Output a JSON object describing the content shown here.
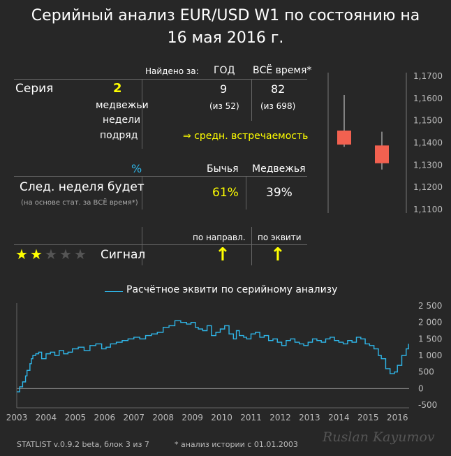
{
  "title_line1": "Серийный анализ EUR/USD W1 по состоянию на",
  "title_line2": "16 мая 2016 г.",
  "found_in": "Найдено за:",
  "col_year": "ГОД",
  "col_all": "ВСЁ время*",
  "series_label": "Серия",
  "series_count": "2",
  "series_desc1": "медвежьи",
  "series_desc2": "недели",
  "series_desc3": "подряд",
  "year_count": "9",
  "year_of": "(из 52)",
  "all_count": "82",
  "all_of": "(из 698)",
  "frequency": "⇒  средн. встречаемость",
  "pct_symbol": "%",
  "col_bull": "Бычья",
  "col_bear": "Медвежья",
  "next_week": "След. неделя будет",
  "next_week_note": "(на основе стат. за ВСЁ время*)",
  "bull_pct": "61%",
  "bear_pct": "39%",
  "by_direction": "по направл.",
  "by_equity": "по эквити",
  "signal_label": "Сигнал",
  "signal_stars": 2,
  "signal_stars_max": 5,
  "arrow_direction": "↑",
  "arrow_equity": "↑",
  "candles": {
    "y_ticks": [
      "1,1700",
      "1,1600",
      "1,1500",
      "1,1400",
      "1,1300",
      "1,1200",
      "1,1100"
    ],
    "y_tick_values": [
      1.17,
      1.16,
      1.15,
      1.14,
      1.13,
      1.12,
      1.11
    ],
    "ylim": [
      1.11,
      1.17
    ],
    "bars": [
      {
        "open": 1.1455,
        "close": 1.1392,
        "high": 1.1615,
        "low": 1.1382,
        "color": "#f26150"
      },
      {
        "open": 1.1388,
        "close": 1.1308,
        "high": 1.145,
        "low": 1.128,
        "color": "#f26150"
      }
    ]
  },
  "chart_data": {
    "type": "line",
    "title": "Расчётное эквити по серийному анализу",
    "legend": "Расчётное эквити по серийному анализу",
    "x_ticks": [
      "2003",
      "2004",
      "2005",
      "2006",
      "2007",
      "2008",
      "2009",
      "2010",
      "2011",
      "2012",
      "2013",
      "2014",
      "2015",
      "2016"
    ],
    "y_ticks": [
      "2 500",
      "2 000",
      "1 500",
      "1 000",
      "500",
      "0",
      "-500"
    ],
    "ylim": [
      -500,
      2500
    ],
    "xlim": [
      2003.0,
      2016.4
    ],
    "grid": false,
    "color": "#2fb6e8",
    "series": [
      {
        "x": [
          2003.0,
          2003.1,
          2003.2,
          2003.3,
          2003.35,
          2003.45,
          2003.5,
          2003.55,
          2003.65,
          2003.75,
          2003.85,
          2004.0,
          2004.15,
          2004.3,
          2004.45,
          2004.6,
          2004.75,
          2004.9,
          2005.1,
          2005.3,
          2005.5,
          2005.7,
          2005.9,
          2006.05,
          2006.2,
          2006.4,
          2006.6,
          2006.8,
          2007.0,
          2007.2,
          2007.4,
          2007.6,
          2007.8,
          2008.0,
          2008.2,
          2008.4,
          2008.6,
          2008.8,
          2008.95,
          2009.1,
          2009.2,
          2009.35,
          2009.5,
          2009.65,
          2009.8,
          2009.95,
          2010.1,
          2010.25,
          2010.4,
          2010.5,
          2010.6,
          2010.75,
          2010.85,
          2011.0,
          2011.15,
          2011.3,
          2011.45,
          2011.6,
          2011.75,
          2011.9,
          2012.05,
          2012.2,
          2012.35,
          2012.5,
          2012.65,
          2012.8,
          2012.95,
          2013.1,
          2013.25,
          2013.4,
          2013.55,
          2013.7,
          2013.85,
          2014.0,
          2014.15,
          2014.3,
          2014.45,
          2014.6,
          2014.75,
          2014.9,
          2015.05,
          2015.2,
          2015.35,
          2015.45,
          2015.6,
          2015.75,
          2015.9,
          2016.0,
          2016.15,
          2016.3,
          2016.38
        ],
        "y": [
          -100,
          50,
          200,
          380,
          550,
          750,
          900,
          1000,
          1050,
          1100,
          900,
          1050,
          1100,
          1000,
          1150,
          1050,
          1100,
          1200,
          1250,
          1150,
          1300,
          1350,
          1200,
          1250,
          1350,
          1400,
          1450,
          1500,
          1550,
          1500,
          1600,
          1650,
          1700,
          1850,
          1900,
          2050,
          2000,
          1950,
          2000,
          1850,
          1800,
          1750,
          1900,
          1600,
          1700,
          1800,
          1900,
          1650,
          1500,
          1750,
          1600,
          1550,
          1500,
          1650,
          1700,
          1550,
          1600,
          1450,
          1500,
          1400,
          1300,
          1450,
          1500,
          1400,
          1350,
          1300,
          1400,
          1500,
          1450,
          1400,
          1500,
          1550,
          1450,
          1400,
          1350,
          1450,
          1400,
          1550,
          1500,
          1350,
          1300,
          1200,
          1000,
          900,
          600,
          450,
          500,
          700,
          1000,
          1200,
          1350
        ]
      }
    ]
  },
  "footer_left": "STATLIST v.0.9.2 beta, блок 3 из 7",
  "footer_mid": "* анализ истории с 01.01.2003",
  "signature": "Ruslan Kayumov"
}
